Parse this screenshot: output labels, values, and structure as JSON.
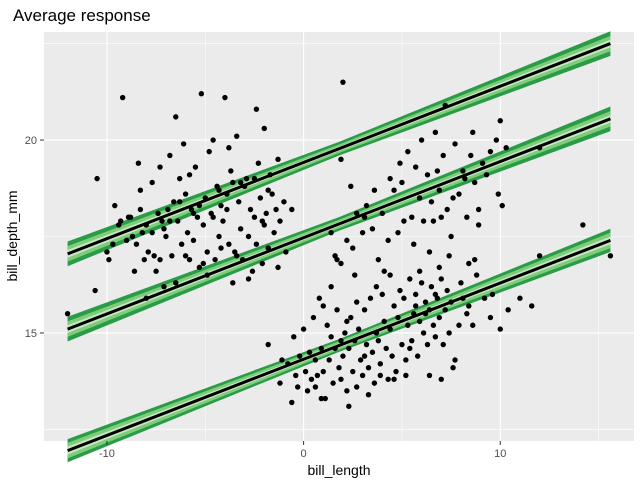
{
  "chart_data": {
    "type": "scatter",
    "title": "Average response",
    "xlabel": "bill_length",
    "ylabel": "bill_depth_mm",
    "xlim": [
      -13.2,
      16.8
    ],
    "ylim": [
      12.2,
      22.8
    ],
    "x_ticks": [
      -10,
      0,
      10
    ],
    "x_tick_labels": [
      "-10",
      "0",
      "10"
    ],
    "y_ticks": [
      15,
      20
    ],
    "y_tick_labels": [
      "15",
      "20"
    ],
    "grid": true,
    "legend": "none",
    "colors": {
      "panel": "#ebebeb",
      "grid_major": "#ffffff",
      "point": "#000000",
      "fit_line": "#000000",
      "band_outer": "#2a9c47",
      "band_middle": "#7fcd7c",
      "band_inner": "#c7e9c0"
    },
    "fit_lines": [
      {
        "x": [
          -12,
          15.6
        ],
        "y": [
          17.05,
          22.5
        ],
        "band_inner": 0.1,
        "band_middle": 0.2,
        "band_outer": 0.32
      },
      {
        "x": [
          -12,
          15.6
        ],
        "y": [
          15.1,
          20.55
        ],
        "band_inner": 0.1,
        "band_middle": 0.2,
        "band_outer": 0.32
      },
      {
        "x": [
          -12,
          15.6
        ],
        "y": [
          11.95,
          17.4
        ],
        "band_inner": 0.1,
        "band_middle": 0.2,
        "band_outer": 0.3
      }
    ],
    "points": [
      [
        -12.0,
        15.5
      ],
      [
        -10.6,
        16.1
      ],
      [
        -10.5,
        19.0
      ],
      [
        -10.0,
        17.1
      ],
      [
        -9.7,
        17.3
      ],
      [
        -9.6,
        18.3
      ],
      [
        -9.4,
        17.8
      ],
      [
        -9.2,
        21.1
      ],
      [
        -9.0,
        17.4
      ],
      [
        -8.9,
        18.0
      ],
      [
        -8.7,
        17.5
      ],
      [
        -8.6,
        16.6
      ],
      [
        -8.4,
        19.4
      ],
      [
        -8.3,
        18.7
      ],
      [
        -8.2,
        17.6
      ],
      [
        -8.1,
        16.9
      ],
      [
        -8.0,
        17.8
      ],
      [
        -8.0,
        15.9
      ],
      [
        -7.9,
        17.1
      ],
      [
        -7.7,
        18.9
      ],
      [
        -7.6,
        17.0
      ],
      [
        -7.5,
        16.6
      ],
      [
        -7.4,
        18.1
      ],
      [
        -7.3,
        19.3
      ],
      [
        -7.2,
        17.9
      ],
      [
        -7.1,
        16.2
      ],
      [
        -7.0,
        17.5
      ],
      [
        -6.9,
        18.2
      ],
      [
        -6.8,
        19.6
      ],
      [
        -6.7,
        17.0
      ],
      [
        -6.6,
        18.4
      ],
      [
        -6.5,
        20.6
      ],
      [
        -6.4,
        17.9
      ],
      [
        -6.3,
        19.0
      ],
      [
        -6.2,
        17.3
      ],
      [
        -6.1,
        19.9
      ],
      [
        -6.0,
        18.6
      ],
      [
        -5.9,
        17.6
      ],
      [
        -5.8,
        16.9
      ],
      [
        -5.7,
        18.2
      ],
      [
        -5.6,
        17.4
      ],
      [
        -5.5,
        19.3
      ],
      [
        -5.4,
        18.0
      ],
      [
        -5.3,
        16.7
      ],
      [
        -5.2,
        21.2
      ],
      [
        -5.1,
        17.8
      ],
      [
        -5.0,
        18.5
      ],
      [
        -4.9,
        17.1
      ],
      [
        -4.8,
        19.7
      ],
      [
        -4.7,
        18.1
      ],
      [
        -4.6,
        20.0
      ],
      [
        -4.5,
        16.9
      ],
      [
        -4.4,
        18.8
      ],
      [
        -4.3,
        17.5
      ],
      [
        -4.2,
        18.3
      ],
      [
        -4.1,
        17.9
      ],
      [
        -4.0,
        21.1
      ],
      [
        -3.9,
        18.6
      ],
      [
        -3.8,
        17.3
      ],
      [
        -3.7,
        19.2
      ],
      [
        -3.6,
        18.9
      ],
      [
        -3.5,
        17.1
      ],
      [
        -3.4,
        20.1
      ],
      [
        -3.3,
        18.4
      ],
      [
        -3.2,
        17.7
      ],
      [
        -3.1,
        16.9
      ],
      [
        -3.0,
        18.8
      ],
      [
        -2.9,
        19.0
      ],
      [
        -2.8,
        17.5
      ],
      [
        -2.7,
        18.2
      ],
      [
        -2.6,
        16.6
      ],
      [
        -2.5,
        18.0
      ],
      [
        -2.4,
        17.3
      ],
      [
        -2.3,
        19.4
      ],
      [
        -2.2,
        18.5
      ],
      [
        -2.1,
        17.9
      ],
      [
        -2.0,
        20.3
      ],
      [
        -1.9,
        18.1
      ],
      [
        -1.8,
        17.2
      ],
      [
        -1.7,
        19.1
      ],
      [
        -1.6,
        18.6
      ],
      [
        -1.5,
        17.6
      ],
      [
        -1.4,
        18.2
      ],
      [
        -1.3,
        19.5
      ],
      [
        -1.2,
        17.9
      ],
      [
        -1.0,
        18.4
      ],
      [
        -0.9,
        17.1
      ],
      [
        -4.3,
        18.7
      ],
      [
        -5.6,
        18.1
      ],
      [
        -3.8,
        19.8
      ],
      [
        -2.4,
        20.8
      ],
      [
        -6.3,
        18.4
      ],
      [
        -7.1,
        17.7
      ],
      [
        -8.8,
        18.0
      ],
      [
        -4.9,
        16.5
      ],
      [
        -3.2,
        18.9
      ],
      [
        -2.8,
        16.4
      ],
      [
        -6.0,
        17.0
      ],
      [
        -9.3,
        17.9
      ],
      [
        -8.3,
        18.2
      ],
      [
        -6.5,
        16.3
      ],
      [
        -5.3,
        18.3
      ],
      [
        -3.4,
        17.0
      ],
      [
        -1.8,
        18.7
      ],
      [
        -2.1,
        16.8
      ],
      [
        -4.2,
        17.2
      ],
      [
        -7.7,
        17.6
      ],
      [
        -5.8,
        19.1
      ],
      [
        -6.8,
        17.9
      ],
      [
        -4.6,
        18.0
      ],
      [
        -3.9,
        18.2
      ],
      [
        -2.5,
        19.0
      ],
      [
        -5.1,
        16.8
      ],
      [
        -7.3,
        16.9
      ],
      [
        -1.3,
        16.7
      ],
      [
        -0.6,
        18.2
      ],
      [
        -8.5,
        17.3
      ],
      [
        -3.6,
        16.3
      ],
      [
        -2.0,
        17.8
      ],
      [
        -9.9,
        16.9
      ],
      [
        2.0,
        21.5
      ],
      [
        1.6,
        17.0
      ],
      [
        1.9,
        16.8
      ],
      [
        2.2,
        17.4
      ],
      [
        2.5,
        17.2
      ],
      [
        2.7,
        18.1
      ],
      [
        3.0,
        17.6
      ],
      [
        3.2,
        18.3
      ],
      [
        3.5,
        17.7
      ],
      [
        3.8,
        16.9
      ],
      [
        4.0,
        18.1
      ],
      [
        4.3,
        17.4
      ],
      [
        4.6,
        18.7
      ],
      [
        4.8,
        17.6
      ],
      [
        5.0,
        18.9
      ],
      [
        5.3,
        19.7
      ],
      [
        5.5,
        18.0
      ],
      [
        5.7,
        19.3
      ],
      [
        5.9,
        18.5
      ],
      [
        6.1,
        17.9
      ],
      [
        6.3,
        19.1
      ],
      [
        6.5,
        18.4
      ],
      [
        6.7,
        20.2
      ],
      [
        6.9,
        18.7
      ],
      [
        7.1,
        19.6
      ],
      [
        7.3,
        18.2
      ],
      [
        7.5,
        17.5
      ],
      [
        7.7,
        19.9
      ],
      [
        7.9,
        18.6
      ],
      [
        8.1,
        19.2
      ],
      [
        8.3,
        18.0
      ],
      [
        8.5,
        19.6
      ],
      [
        8.6,
        20.2
      ],
      [
        8.7,
        18.9
      ],
      [
        8.9,
        17.8
      ],
      [
        9.1,
        19.4
      ],
      [
        9.3,
        19.1
      ],
      [
        9.5,
        19.7
      ],
      [
        9.8,
        20.0
      ],
      [
        10.0,
        20.5
      ],
      [
        10.1,
        18.3
      ],
      [
        10.3,
        19.8
      ],
      [
        6.4,
        17.1
      ],
      [
        5.1,
        17.9
      ],
      [
        7.4,
        17.0
      ],
      [
        8.9,
        18.2
      ],
      [
        4.4,
        19.0
      ],
      [
        6.0,
        20.0
      ],
      [
        7.2,
        20.9
      ],
      [
        8.2,
        19.0
      ],
      [
        1.9,
        19.5
      ],
      [
        2.4,
        18.8
      ],
      [
        3.1,
        18.0
      ],
      [
        1.4,
        17.6
      ],
      [
        8.7,
        16.9
      ],
      [
        9.9,
        18.6
      ],
      [
        5.6,
        17.3
      ],
      [
        6.8,
        19.2
      ],
      [
        4.9,
        19.4
      ],
      [
        7.6,
        18.5
      ],
      [
        12.0,
        19.8
      ],
      [
        8.4,
        16.8
      ],
      [
        7.0,
        18.0
      ],
      [
        6.6,
        17.9
      ],
      [
        3.6,
        18.7
      ],
      [
        -1.8,
        14.7
      ],
      [
        -1.2,
        13.7
      ],
      [
        -0.8,
        14.2
      ],
      [
        -0.6,
        13.2
      ],
      [
        -0.4,
        13.9
      ],
      [
        -0.2,
        14.4
      ],
      [
        0.0,
        15.1
      ],
      [
        0.2,
        13.5
      ],
      [
        0.4,
        13.8
      ],
      [
        0.5,
        15.4
      ],
      [
        0.6,
        14.3
      ],
      [
        0.7,
        13.9
      ],
      [
        0.8,
        15.9
      ],
      [
        0.9,
        14.6
      ],
      [
        1.0,
        14.0
      ],
      [
        1.1,
        13.3
      ],
      [
        1.2,
        15.2
      ],
      [
        1.3,
        14.3
      ],
      [
        1.4,
        16.2
      ],
      [
        1.5,
        13.7
      ],
      [
        1.6,
        14.6
      ],
      [
        1.7,
        15.6
      ],
      [
        1.8,
        14.1
      ],
      [
        1.9,
        13.8
      ],
      [
        2.0,
        14.4
      ],
      [
        2.1,
        15.0
      ],
      [
        2.2,
        13.5
      ],
      [
        2.3,
        14.6
      ],
      [
        2.4,
        15.4
      ],
      [
        2.5,
        14.0
      ],
      [
        2.6,
        14.8
      ],
      [
        2.7,
        13.6
      ],
      [
        2.8,
        15.1
      ],
      [
        2.9,
        14.3
      ],
      [
        3.0,
        13.9
      ],
      [
        3.1,
        15.6
      ],
      [
        3.2,
        14.7
      ],
      [
        3.3,
        14.1
      ],
      [
        3.4,
        15.9
      ],
      [
        3.5,
        14.5
      ],
      [
        3.6,
        13.7
      ],
      [
        3.7,
        15.0
      ],
      [
        3.8,
        14.8
      ],
      [
        3.9,
        14.2
      ],
      [
        4.0,
        16.0
      ],
      [
        4.1,
        15.3
      ],
      [
        4.2,
        14.6
      ],
      [
        4.3,
        13.8
      ],
      [
        4.4,
        15.1
      ],
      [
        4.5,
        14.4
      ],
      [
        4.6,
        15.7
      ],
      [
        4.7,
        14.0
      ],
      [
        4.8,
        15.4
      ],
      [
        4.9,
        16.1
      ],
      [
        5.0,
        14.7
      ],
      [
        5.1,
        15.9
      ],
      [
        5.2,
        14.3
      ],
      [
        5.3,
        15.2
      ],
      [
        5.4,
        16.4
      ],
      [
        5.5,
        14.8
      ],
      [
        5.6,
        15.5
      ],
      [
        5.7,
        16.0
      ],
      [
        5.8,
        14.4
      ],
      [
        5.9,
        15.3
      ],
      [
        6.0,
        16.3
      ],
      [
        6.1,
        15.0
      ],
      [
        6.2,
        15.8
      ],
      [
        6.3,
        14.7
      ],
      [
        6.4,
        15.6
      ],
      [
        6.5,
        16.2
      ],
      [
        6.6,
        15.2
      ],
      [
        6.7,
        14.9
      ],
      [
        6.8,
        15.9
      ],
      [
        6.9,
        15.4
      ],
      [
        7.0,
        16.4
      ],
      [
        7.1,
        14.7
      ],
      [
        7.2,
        15.6
      ],
      [
        7.3,
        16.1
      ],
      [
        7.4,
        15.0
      ],
      [
        7.5,
        15.8
      ],
      [
        7.7,
        14.3
      ],
      [
        7.9,
        15.2
      ],
      [
        8.0,
        16.3
      ],
      [
        8.3,
        15.5
      ],
      [
        8.6,
        15.2
      ],
      [
        8.8,
        16.5
      ],
      [
        9.2,
        15.9
      ],
      [
        9.5,
        15.4
      ],
      [
        10.0,
        15.1
      ],
      [
        10.4,
        15.6
      ],
      [
        11.0,
        15.9
      ],
      [
        11.6,
        15.7
      ],
      [
        12.0,
        17.0
      ],
      [
        14.2,
        17.8
      ],
      [
        15.6,
        17.0
      ],
      [
        0.6,
        13.6
      ],
      [
        1.9,
        14.8
      ],
      [
        2.7,
        15.8
      ],
      [
        3.9,
        13.9
      ],
      [
        4.6,
        13.8
      ],
      [
        5.4,
        14.6
      ],
      [
        6.4,
        13.9
      ],
      [
        7.6,
        14.1
      ],
      [
        1.4,
        14.9
      ],
      [
        3.1,
        14.4
      ],
      [
        2.3,
        13.1
      ],
      [
        0.3,
        14.5
      ],
      [
        -0.5,
        14.9
      ],
      [
        4.4,
        16.5
      ],
      [
        5.9,
        16.6
      ],
      [
        6.9,
        16.7
      ],
      [
        1.7,
        16.9
      ],
      [
        8.4,
        15.7
      ],
      [
        9.6,
        16.0
      ],
      [
        3.7,
        16.2
      ],
      [
        2.2,
        15.3
      ],
      [
        1.0,
        15.7
      ],
      [
        5.2,
        13.9
      ],
      [
        6.2,
        15.5
      ],
      [
        7.0,
        13.8
      ],
      [
        0.9,
        13.3
      ],
      [
        -0.3,
        13.6
      ],
      [
        2.6,
        16.5
      ],
      [
        4.1,
        16.6
      ],
      [
        3.3,
        13.4
      ],
      [
        -1.1,
        14.3
      ],
      [
        0.1,
        14.0
      ],
      [
        5.7,
        15.7
      ],
      [
        8.1,
        15.9
      ],
      [
        6.7,
        16.0
      ]
    ]
  }
}
